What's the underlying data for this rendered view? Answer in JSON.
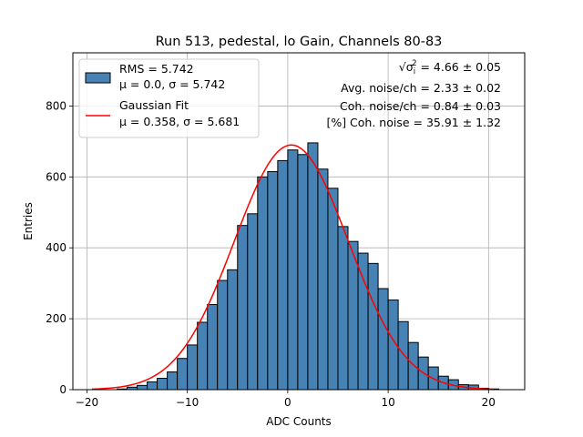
{
  "chart_data": {
    "type": "bar",
    "title": "Run 513, pedestal, lo Gain, Channels 80-83",
    "xlabel": "ADC Counts",
    "ylabel": "Entries",
    "xlim": [
      -21.4,
      23.6
    ],
    "ylim": [
      0,
      950
    ],
    "xticks": [
      -20,
      -10,
      0,
      10,
      20
    ],
    "yticks": [
      0,
      200,
      400,
      600,
      800
    ],
    "grid": true,
    "bin_width": 1,
    "bin_starts": [
      -20,
      -19,
      -18,
      -17,
      -16,
      -15,
      -14,
      -13,
      -12,
      -11,
      -10,
      -9,
      -8,
      -7,
      -6,
      -5,
      -4,
      -3,
      -2,
      -1,
      0,
      1,
      2,
      3,
      4,
      5,
      6,
      7,
      8,
      9,
      10,
      11,
      12,
      13,
      14,
      15,
      16,
      17,
      18,
      19,
      20
    ],
    "values": [
      0,
      0,
      0,
      2,
      7,
      12,
      22,
      32,
      50,
      88,
      126,
      190,
      240,
      308,
      338,
      463,
      496,
      600,
      615,
      646,
      676,
      663,
      696,
      622,
      568,
      460,
      418,
      385,
      356,
      285,
      253,
      192,
      133,
      92,
      64,
      38,
      28,
      14,
      13,
      4,
      2
    ],
    "series": [
      {
        "name": "RMS = 5.742",
        "subtitle": "μ = 0.0, σ = 5.742",
        "color": "#4682b4",
        "kind": "histogram"
      },
      {
        "name": "Gaussian Fit",
        "subtitle": "μ = 0.358, σ = 5.681",
        "color": "#ff0000",
        "kind": "line",
        "mu": 0.358,
        "sigma": 5.681,
        "amplitude": 690,
        "x_range": [
          -19.5,
          20.5
        ]
      }
    ],
    "legend_position": "top-left",
    "annotations": [
      {
        "prefix": "√σ",
        "sub": "i",
        "sup": "2",
        "text": " = 4.66 ± 0.05"
      },
      {
        "text": "Avg. noise/ch = 2.33 ± 0.02"
      },
      {
        "text": "Coh. noise/ch = 0.84 ± 0.03"
      },
      {
        "text": "[%] Coh. noise = 35.91 ± 1.32"
      }
    ]
  }
}
